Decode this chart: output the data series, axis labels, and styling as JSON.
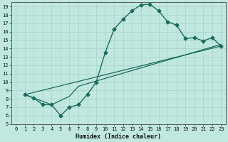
{
  "xlabel": "Humidex (Indice chaleur)",
  "xlim": [
    -0.5,
    23.5
  ],
  "ylim": [
    5,
    19.5
  ],
  "xticks": [
    0,
    1,
    2,
    3,
    4,
    5,
    6,
    7,
    8,
    9,
    10,
    11,
    12,
    13,
    14,
    15,
    16,
    17,
    18,
    19,
    20,
    21,
    22,
    23
  ],
  "yticks": [
    5,
    6,
    7,
    8,
    9,
    10,
    11,
    12,
    13,
    14,
    15,
    16,
    17,
    18,
    19
  ],
  "background_color": "#c0e8e0",
  "grid_color": "#aed8d0",
  "line_color": "#1a6b5a",
  "curve_x": [
    1,
    2,
    3,
    4,
    5,
    6,
    7,
    8,
    9,
    10,
    11,
    12,
    13,
    14,
    15,
    16,
    17,
    18,
    19,
    20,
    21,
    22,
    23
  ],
  "curve_y": [
    8.5,
    8.1,
    7.3,
    7.3,
    6.0,
    7.0,
    7.3,
    8.5,
    10.0,
    13.5,
    16.3,
    17.5,
    18.5,
    19.2,
    19.3,
    18.5,
    17.2,
    16.8,
    15.2,
    15.3,
    14.9,
    15.3,
    14.3
  ],
  "trend1_x": [
    1,
    4,
    6,
    7,
    23
  ],
  "trend1_y": [
    8.5,
    7.3,
    8.3,
    9.5,
    14.5
  ],
  "trend2_x": [
    1,
    23
  ],
  "trend2_y": [
    8.5,
    14.3
  ]
}
